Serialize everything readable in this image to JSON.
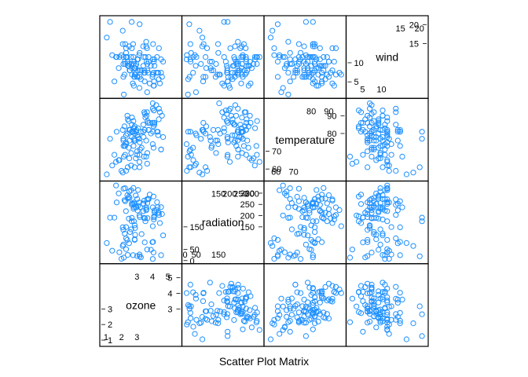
{
  "chart_data": {
    "type": "scatter",
    "title": "",
    "xlabel": "Scatter Plot Matrix",
    "point_color": "#1E90FF",
    "point_shape": "open circle",
    "grid": false,
    "variables": [
      {
        "name": "ozone",
        "range": [
          0.8,
          5.7
        ],
        "ticks_low": [
          1,
          2,
          3
        ],
        "ticks_high": [
          3,
          4,
          5
        ]
      },
      {
        "name": "radiation",
        "range": [
          0,
          340
        ],
        "ticks_low": [
          0,
          50,
          150
        ],
        "ticks_high": [
          150,
          200,
          250,
          300
        ]
      },
      {
        "name": "temperature",
        "range": [
          55,
          98
        ],
        "ticks_low": [
          60,
          70
        ],
        "ticks_high": [
          80,
          90
        ]
      },
      {
        "name": "wind",
        "range": [
          1.5,
          21.5
        ],
        "ticks_low": [
          5,
          10
        ],
        "ticks_high": [
          15,
          20
        ]
      }
    ],
    "series": [
      {
        "name": "ozone",
        "values": [
          3.45,
          3.3,
          2.3,
          2.62,
          1.82,
          2.3,
          3.17,
          3.67,
          2.92,
          3.02,
          2.08,
          1.65,
          2.5,
          1.05,
          2.23,
          1.4,
          2.0,
          2.13,
          2.4,
          2.85,
          2.15,
          2.73,
          3.04,
          2.52,
          2.55,
          2.38,
          2.77,
          2.08,
          1.26,
          2.47,
          1.86,
          2.21,
          2.12,
          2.19,
          2.67,
          2.94,
          2.8,
          3.07,
          2.41,
          3.47,
          3.65,
          3.54,
          2.24,
          2.66,
          3.9,
          4.3,
          3.75,
          4.07,
          2.47,
          3.41,
          4.02,
          3.82,
          4.12,
          3.5,
          4.0,
          4.41,
          3.72,
          2.82,
          3.4,
          4.04,
          2.75,
          2.49,
          2.68,
          3.62,
          4.62,
          4.1,
          3.75,
          2.85,
          2.12,
          2.3,
          2.88,
          3.07,
          2.67,
          3.14,
          4.07,
          4.37,
          4.34,
          4.13,
          4.02,
          4.42,
          4.25,
          4.02,
          3.51,
          4.48,
          4.1,
          4.09,
          3.68,
          2.85,
          2.37,
          3.43,
          2.29,
          2.78,
          1.69,
          2.82,
          2.82,
          4.56,
          4.56,
          4.69,
          3.6,
          3.6,
          3.17,
          2.96,
          3.16,
          3.2,
          3.25,
          2.63,
          3.66,
          3.01,
          3.18,
          2.88,
          1.54
        ]
      },
      {
        "name": "radiation",
        "values": [
          190,
          118,
          149,
          313,
          299,
          99,
          19,
          256,
          290,
          274,
          65,
          334,
          307,
          78,
          322,
          44,
          8,
          320,
          25,
          92,
          13,
          252,
          223,
          279,
          127,
          291,
          323,
          148,
          191,
          284,
          37,
          120,
          137,
          269,
          248,
          236,
          175,
          314,
          276,
          267,
          272,
          175,
          264,
          175,
          48,
          260,
          274,
          285,
          187,
          220,
          7,
          294,
          223,
          81,
          82,
          213,
          275,
          253,
          254,
          83,
          24,
          77,
          255,
          229,
          207,
          192,
          273,
          157,
          71,
          51,
          115,
          244,
          190,
          259,
          36,
          212,
          238,
          215,
          153,
          203,
          225,
          237,
          188,
          167,
          197,
          183,
          189,
          95,
          92,
          252,
          220,
          230,
          259,
          236,
          259,
          238,
          24,
          112,
          237,
          224,
          27,
          238,
          201,
          238,
          14,
          139,
          49,
          20,
          193,
          145,
          191
        ]
      },
      {
        "name": "temperature",
        "values": [
          67,
          72,
          74,
          62,
          65,
          59,
          61,
          69,
          66,
          68,
          58,
          64,
          66,
          57,
          68,
          62,
          59,
          73,
          61,
          61,
          67,
          81,
          79,
          76,
          82,
          90,
          87,
          82,
          77,
          72,
          65,
          73,
          76,
          84,
          85,
          81,
          83,
          83,
          88,
          92,
          92,
          89,
          73,
          81,
          80,
          81,
          82,
          84,
          87,
          85,
          74,
          86,
          85,
          82,
          86,
          88,
          86,
          83,
          81,
          81,
          81,
          82,
          89,
          90,
          90,
          86,
          82,
          80,
          77,
          79,
          76,
          78,
          78,
          77,
          72,
          79,
          81,
          86,
          97,
          94,
          96,
          94,
          91,
          92,
          93,
          93,
          87,
          84,
          80,
          78,
          75,
          73,
          81,
          76,
          77,
          71,
          71,
          78,
          67,
          76,
          68,
          82,
          64,
          71,
          81,
          69,
          63,
          70,
          75,
          76,
          68
        ]
      },
      {
        "name": "wind",
        "values": [
          7.4,
          8.0,
          12.6,
          11.5,
          8.6,
          13.8,
          20.1,
          9.7,
          9.2,
          10.9,
          18.4,
          11.5,
          9.7,
          16.6,
          9.7,
          12.0,
          12.0,
          11.5,
          10.3,
          6.3,
          1.7,
          4.6,
          6.3,
          8.0,
          8.0,
          10.3,
          11.5,
          14.9,
          20.7,
          9.2,
          11.5,
          10.3,
          6.3,
          6.9,
          13.8,
          7.4,
          4.0,
          10.9,
          9.2,
          8.0,
          13.8,
          11.5,
          14.9,
          20.7,
          9.2,
          11.5,
          10.3,
          4.0,
          9.2,
          9.2,
          10.9,
          4.6,
          10.9,
          5.1,
          6.3,
          5.7,
          7.4,
          8.6,
          14.3,
          14.9,
          14.9,
          14.3,
          6.9,
          10.3,
          6.3,
          5.1,
          11.5,
          6.9,
          9.7,
          11.5,
          8.6,
          8.0,
          8.6,
          12.0,
          7.4,
          7.4,
          7.4,
          9.2,
          6.9,
          13.8,
          7.4,
          6.9,
          7.4,
          4.6,
          4.0,
          10.3,
          8.0,
          8.6,
          11.5,
          11.5,
          11.5,
          9.7,
          11.5,
          10.3,
          6.3,
          7.4,
          10.9,
          10.3,
          15.5,
          14.3,
          12.6,
          9.7,
          3.4,
          8.0,
          5.7,
          9.7,
          2.3,
          6.3,
          6.3,
          6.9,
          5.1
        ]
      }
    ]
  }
}
